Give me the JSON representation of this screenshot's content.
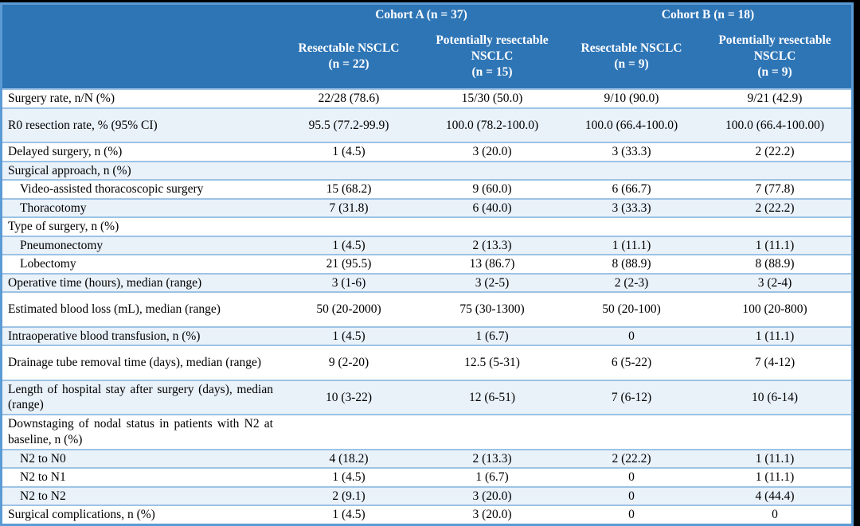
{
  "colors": {
    "canvas_bg": "#000000",
    "header_bg": "#2E75B6",
    "header_text": "#FFFFFF",
    "row_bg": "#FFFFFF",
    "row_alt_bg": "#E9F1F9",
    "grid_line": "#9CC3E5",
    "outer_border": "#5B9BD5",
    "body_text": "#000000"
  },
  "table": {
    "header": {
      "cohorts": [
        {
          "label": "Cohort A (n = 37)"
        },
        {
          "label": "Cohort B (n = 18)"
        }
      ],
      "columns": [
        {
          "title": "Resectable NSCLC",
          "n": "(n = 22)"
        },
        {
          "title": "Potentially resectable NSCLC",
          "n": "(n = 15)"
        },
        {
          "title": "Resectable NSCLC",
          "n": "(n = 9)"
        },
        {
          "title": "Potentially resectable NSCLC",
          "n": "(n = 9)"
        }
      ]
    },
    "rows": [
      {
        "label": "Surgery rate, n/N (%)",
        "indent": false,
        "tall": false,
        "values": [
          "22/28 (78.6)",
          "15/30 (50.0)",
          "9/10 (90.0)",
          "9/21 (42.9)"
        ]
      },
      {
        "label": "R0 resection rate, % (95% CI)",
        "indent": false,
        "tall": true,
        "values": [
          "95.5 (77.2-99.9)",
          "100.0 (78.2-100.0)",
          "100.0 (66.4-100.0)",
          "100.0 (66.4-100.00)"
        ]
      },
      {
        "label": "Delayed surgery, n (%)",
        "indent": false,
        "tall": false,
        "values": [
          "1 (4.5)",
          "3 (20.0)",
          "3 (33.3)",
          "2 (22.2)"
        ]
      },
      {
        "label": "Surgical approach, n (%)",
        "indent": false,
        "tall": false,
        "values": [
          "",
          "",
          "",
          ""
        ]
      },
      {
        "label": "Video-assisted thoracoscopic surgery",
        "indent": true,
        "tall": false,
        "values": [
          "15 (68.2)",
          "9 (60.0)",
          "6 (66.7)",
          "7 (77.8)"
        ]
      },
      {
        "label": "Thoracotomy",
        "indent": true,
        "tall": false,
        "values": [
          "7 (31.8)",
          "6 (40.0)",
          "3 (33.3)",
          "2 (22.2)"
        ]
      },
      {
        "label": "Type of surgery, n (%)",
        "indent": false,
        "tall": false,
        "values": [
          "",
          "",
          "",
          ""
        ]
      },
      {
        "label": "Pneumonectomy",
        "indent": true,
        "tall": false,
        "values": [
          "1 (4.5)",
          "2 (13.3)",
          "1 (11.1)",
          "1 (11.1)"
        ]
      },
      {
        "label": "Lobectomy",
        "indent": true,
        "tall": false,
        "values": [
          "21 (95.5)",
          "13 (86.7)",
          "8 (88.9)",
          "8 (88.9)"
        ]
      },
      {
        "label": "Operative time (hours), median (range)",
        "indent": false,
        "tall": false,
        "values": [
          "3 (1-6)",
          "3 (2-5)",
          "2 (2-3)",
          "3 (2-4)"
        ]
      },
      {
        "label": "Estimated blood loss (mL), median (range)",
        "indent": false,
        "tall": true,
        "values": [
          "50 (20-2000)",
          "75 (30-1300)",
          "50 (20-100)",
          "100 (20-800)"
        ]
      },
      {
        "label": "Intraoperative blood transfusion, n (%)",
        "indent": false,
        "tall": false,
        "values": [
          "1 (4.5)",
          "1 (6.7)",
          "0",
          "1 (11.1)"
        ]
      },
      {
        "label": "Drainage tube removal time (days), median (range)",
        "indent": false,
        "tall": true,
        "values": [
          "9 (2-20)",
          "12.5 (5-31)",
          "6 (5-22)",
          "7 (4-12)"
        ]
      },
      {
        "label": "Length of hospital stay after surgery (days), median (range)",
        "indent": false,
        "tall": true,
        "values": [
          "10 (3-22)",
          "12 (6-51)",
          "7 (6-12)",
          "10 (6-14)"
        ]
      },
      {
        "label": "Downstaging of nodal status in patients with N2 at baseline, n (%)",
        "indent": false,
        "tall": true,
        "values": [
          "",
          "",
          "",
          ""
        ]
      },
      {
        "label": "N2 to N0",
        "indent": true,
        "tall": false,
        "values": [
          "4 (18.2)",
          "2 (13.3)",
          "2 (22.2)",
          "1 (11.1)"
        ]
      },
      {
        "label": "N2 to N1",
        "indent": true,
        "tall": false,
        "values": [
          "1 (4.5)",
          "1 (6.7)",
          "0",
          "1 (11.1)"
        ]
      },
      {
        "label": "N2 to N2",
        "indent": true,
        "tall": false,
        "values": [
          "2 (9.1)",
          "3 (20.0)",
          "0",
          "4 (44.4)"
        ]
      },
      {
        "label": "Surgical complications, n (%)",
        "indent": false,
        "tall": false,
        "values": [
          "1 (4.5)",
          "3 (20.0)",
          "0",
          "0"
        ]
      }
    ]
  }
}
